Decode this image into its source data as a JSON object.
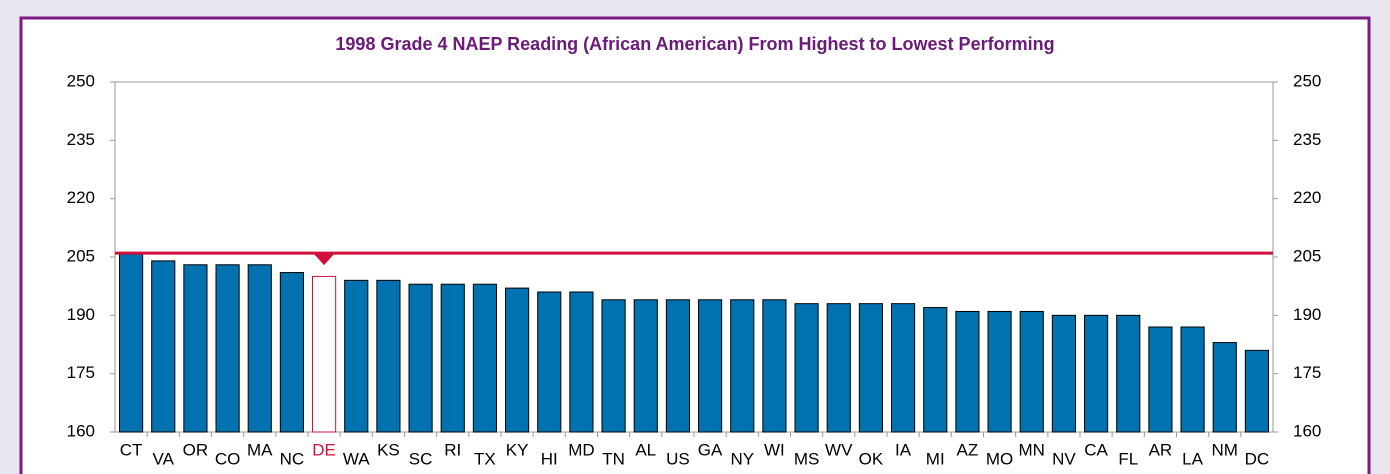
{
  "chart_data": {
    "type": "bar",
    "title": "1998 Grade 4 NAEP Reading (African American) From Highest to Lowest Performing",
    "categories": [
      "CT",
      "VA",
      "OR",
      "CO",
      "MA",
      "NC",
      "DE",
      "WA",
      "KS",
      "SC",
      "RI",
      "TX",
      "KY",
      "HI",
      "MD",
      "TN",
      "AL",
      "US",
      "GA",
      "NY",
      "WI",
      "MS",
      "WV",
      "OK",
      "IA",
      "MI",
      "AZ",
      "MO",
      "MN",
      "NV",
      "CA",
      "FL",
      "AR",
      "LA",
      "NM",
      "DC"
    ],
    "values": [
      206,
      204,
      203,
      203,
      203,
      201,
      200,
      199,
      199,
      198,
      198,
      198,
      197,
      196,
      196,
      194,
      194,
      194,
      194,
      194,
      194,
      193,
      193,
      193,
      193,
      192,
      191,
      191,
      191,
      190,
      190,
      190,
      187,
      187,
      183,
      181
    ],
    "color": "#0072b0",
    "highlight": "DE",
    "highlight_color": "#d0103a",
    "reference_line": 206,
    "ylim": [
      160,
      250
    ],
    "yticks": [
      160,
      175,
      190,
      205,
      220,
      235,
      250
    ],
    "y2lim": [
      160,
      250
    ],
    "y2ticks": [
      160,
      175,
      190,
      205,
      220,
      235,
      250
    ]
  }
}
